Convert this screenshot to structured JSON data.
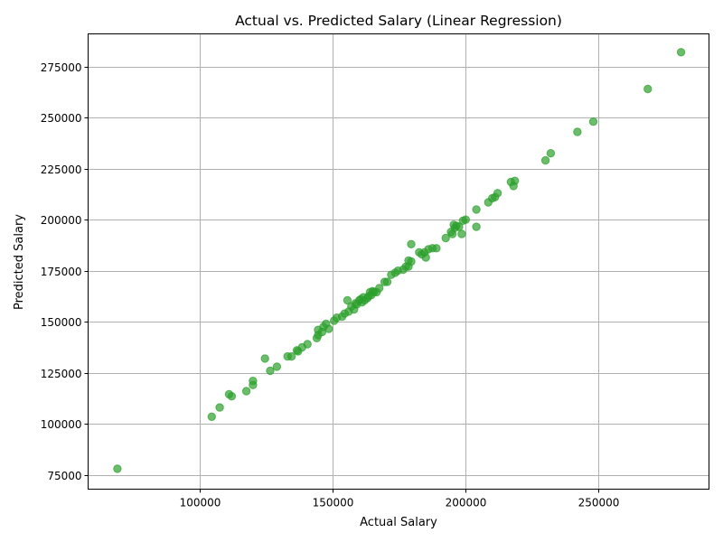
{
  "chart_data": {
    "type": "scatter",
    "title": "Actual vs. Predicted Salary (Linear Regression)",
    "xlabel": "Actual Salary",
    "ylabel": "Predicted Salary",
    "xlim": [
      58000,
      291500
    ],
    "ylim": [
      68000,
      291000
    ],
    "xticks": [
      100000,
      150000,
      200000,
      250000
    ],
    "yticks": [
      75000,
      100000,
      125000,
      150000,
      175000,
      200000,
      225000,
      250000,
      275000
    ],
    "grid": true,
    "legend": "none",
    "marker_color": "#2ca02c",
    "marker_opacity": 0.7,
    "points": [
      [
        69000,
        78000
      ],
      [
        104500,
        103500
      ],
      [
        107500,
        108000
      ],
      [
        111000,
        114500
      ],
      [
        112000,
        113500
      ],
      [
        117500,
        116000
      ],
      [
        120000,
        121000
      ],
      [
        120000,
        119000
      ],
      [
        124500,
        132000
      ],
      [
        126500,
        126000
      ],
      [
        129000,
        128000
      ],
      [
        133000,
        133000
      ],
      [
        134500,
        133000
      ],
      [
        136500,
        136000
      ],
      [
        137000,
        135500
      ],
      [
        138500,
        137500
      ],
      [
        140500,
        139000
      ],
      [
        144000,
        142000
      ],
      [
        144500,
        143500
      ],
      [
        144500,
        146000
      ],
      [
        146000,
        145000
      ],
      [
        146500,
        147500
      ],
      [
        147500,
        149000
      ],
      [
        148500,
        146500
      ],
      [
        150500,
        150500
      ],
      [
        151500,
        152000
      ],
      [
        153500,
        152500
      ],
      [
        154500,
        154000
      ],
      [
        155500,
        160500
      ],
      [
        156000,
        155000
      ],
      [
        157000,
        157500
      ],
      [
        158000,
        156000
      ],
      [
        158500,
        159000
      ],
      [
        159000,
        158500
      ],
      [
        160000,
        160500
      ],
      [
        160500,
        161000
      ],
      [
        161000,
        159500
      ],
      [
        161500,
        162000
      ],
      [
        162000,
        160500
      ],
      [
        163000,
        161500
      ],
      [
        163500,
        162500
      ],
      [
        164000,
        164500
      ],
      [
        164500,
        163000
      ],
      [
        165000,
        165000
      ],
      [
        165500,
        164500
      ],
      [
        166500,
        164500
      ],
      [
        167500,
        166500
      ],
      [
        169500,
        169500
      ],
      [
        170500,
        169500
      ],
      [
        172000,
        173000
      ],
      [
        173500,
        174000
      ],
      [
        174500,
        175000
      ],
      [
        176500,
        175500
      ],
      [
        177500,
        177000
      ],
      [
        178500,
        180000
      ],
      [
        178500,
        177000
      ],
      [
        179500,
        179500
      ],
      [
        179500,
        188000
      ],
      [
        182500,
        184000
      ],
      [
        183500,
        183000
      ],
      [
        184500,
        184000
      ],
      [
        185000,
        181500
      ],
      [
        186000,
        185500
      ],
      [
        187500,
        186000
      ],
      [
        189000,
        186000
      ],
      [
        192500,
        191000
      ],
      [
        194500,
        194000
      ],
      [
        195000,
        193000
      ],
      [
        195500,
        197500
      ],
      [
        196000,
        196000
      ],
      [
        196500,
        197000
      ],
      [
        197500,
        196500
      ],
      [
        198500,
        193000
      ],
      [
        199000,
        199500
      ],
      [
        200000,
        200000
      ],
      [
        204000,
        205000
      ],
      [
        204000,
        196500
      ],
      [
        208500,
        208500
      ],
      [
        210000,
        210500
      ],
      [
        211000,
        211000
      ],
      [
        212000,
        213000
      ],
      [
        217000,
        218500
      ],
      [
        218000,
        216500
      ],
      [
        218500,
        219000
      ],
      [
        230000,
        229000
      ],
      [
        232000,
        232500
      ],
      [
        242000,
        243000
      ],
      [
        248000,
        248000
      ],
      [
        268500,
        264000
      ],
      [
        281000,
        282000
      ]
    ]
  }
}
